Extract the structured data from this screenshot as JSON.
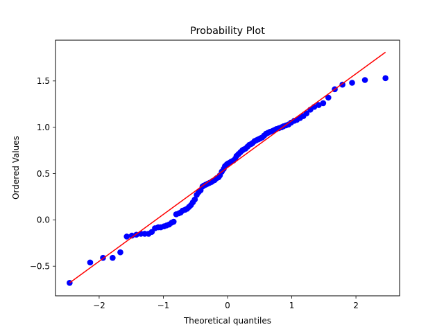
{
  "chart_data": {
    "type": "scatter",
    "title": "Probability Plot",
    "xlabel": "Theoretical quantiles",
    "ylabel": "Ordered Values",
    "xlim": [
      -2.68,
      2.68
    ],
    "ylim": [
      -0.82,
      1.94
    ],
    "x_ticks": [
      -2,
      -1,
      0,
      1,
      2
    ],
    "x_tick_labels": [
      "−2",
      "−1",
      "0",
      "1",
      "2"
    ],
    "y_ticks": [
      -0.5,
      0.0,
      0.5,
      1.0,
      1.5
    ],
    "y_tick_labels": [
      "−0.5",
      "0.0",
      "0.5",
      "1.0",
      "1.5"
    ],
    "grid": false,
    "colors": {
      "points": "#0000ff",
      "fit_line": "#ff0000"
    },
    "fit_line": {
      "x": [
        -2.46,
        2.46
      ],
      "y": [
        -0.68,
        1.81
      ]
    },
    "points": [
      [
        -2.46,
        -0.68
      ],
      [
        -2.14,
        -0.46
      ],
      [
        -1.94,
        -0.41
      ],
      [
        -1.79,
        -0.41
      ],
      [
        -1.67,
        -0.35
      ],
      [
        -1.57,
        -0.18
      ],
      [
        -1.49,
        -0.17
      ],
      [
        -1.42,
        -0.16
      ],
      [
        -1.35,
        -0.15
      ],
      [
        -1.29,
        -0.15
      ],
      [
        -1.23,
        -0.15
      ],
      [
        -1.18,
        -0.13
      ],
      [
        -1.13,
        -0.09
      ],
      [
        -1.08,
        -0.08
      ],
      [
        -1.04,
        -0.08
      ],
      [
        -0.99,
        -0.07
      ],
      [
        -0.95,
        -0.06
      ],
      [
        -0.91,
        -0.05
      ],
      [
        -0.87,
        -0.03
      ],
      [
        -0.84,
        -0.02
      ],
      [
        -0.8,
        0.06
      ],
      [
        -0.76,
        0.07
      ],
      [
        -0.73,
        0.08
      ],
      [
        -0.7,
        0.1
      ],
      [
        -0.66,
        0.11
      ],
      [
        -0.63,
        0.12
      ],
      [
        -0.6,
        0.14
      ],
      [
        -0.57,
        0.16
      ],
      [
        -0.54,
        0.19
      ],
      [
        -0.51,
        0.22
      ],
      [
        -0.48,
        0.27
      ],
      [
        -0.45,
        0.3
      ],
      [
        -0.42,
        0.32
      ],
      [
        -0.39,
        0.36
      ],
      [
        -0.37,
        0.37
      ],
      [
        -0.34,
        0.38
      ],
      [
        -0.31,
        0.39
      ],
      [
        -0.28,
        0.4
      ],
      [
        -0.25,
        0.41
      ],
      [
        -0.23,
        0.42
      ],
      [
        -0.2,
        0.43
      ],
      [
        -0.17,
        0.45
      ],
      [
        -0.14,
        0.46
      ],
      [
        -0.12,
        0.48
      ],
      [
        -0.09,
        0.52
      ],
      [
        -0.06,
        0.55
      ],
      [
        -0.04,
        0.58
      ],
      [
        -0.01,
        0.6
      ],
      [
        0.01,
        0.61
      ],
      [
        0.04,
        0.62
      ],
      [
        0.06,
        0.63
      ],
      [
        0.09,
        0.64
      ],
      [
        0.12,
        0.66
      ],
      [
        0.14,
        0.69
      ],
      [
        0.17,
        0.71
      ],
      [
        0.2,
        0.73
      ],
      [
        0.23,
        0.75
      ],
      [
        0.25,
        0.76
      ],
      [
        0.28,
        0.77
      ],
      [
        0.31,
        0.79
      ],
      [
        0.34,
        0.81
      ],
      [
        0.37,
        0.82
      ],
      [
        0.39,
        0.83
      ],
      [
        0.42,
        0.85
      ],
      [
        0.45,
        0.86
      ],
      [
        0.48,
        0.87
      ],
      [
        0.51,
        0.88
      ],
      [
        0.54,
        0.89
      ],
      [
        0.57,
        0.91
      ],
      [
        0.6,
        0.93
      ],
      [
        0.63,
        0.94
      ],
      [
        0.66,
        0.95
      ],
      [
        0.7,
        0.96
      ],
      [
        0.73,
        0.97
      ],
      [
        0.76,
        0.98
      ],
      [
        0.8,
        0.99
      ],
      [
        0.84,
        1.0
      ],
      [
        0.87,
        1.01
      ],
      [
        0.91,
        1.02
      ],
      [
        0.95,
        1.03
      ],
      [
        0.99,
        1.05
      ],
      [
        1.04,
        1.07
      ],
      [
        1.08,
        1.08
      ],
      [
        1.13,
        1.1
      ],
      [
        1.18,
        1.12
      ],
      [
        1.23,
        1.15
      ],
      [
        1.29,
        1.19
      ],
      [
        1.35,
        1.22
      ],
      [
        1.42,
        1.24
      ],
      [
        1.49,
        1.26
      ],
      [
        1.57,
        1.32
      ],
      [
        1.67,
        1.41
      ],
      [
        1.79,
        1.46
      ],
      [
        1.94,
        1.48
      ],
      [
        2.14,
        1.51
      ],
      [
        2.46,
        1.53
      ]
    ]
  }
}
